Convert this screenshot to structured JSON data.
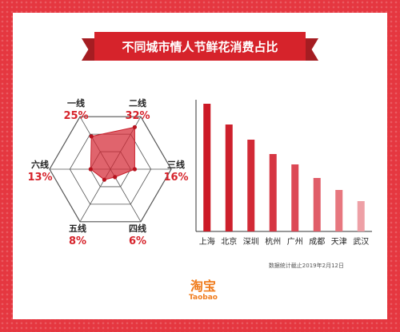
{
  "title": "不同城市情人节鲜花消费占比",
  "footnote": "数据统计截止2019年2月12日",
  "logo": {
    "cn": "淘宝",
    "en": "Taobao"
  },
  "colors": {
    "accent": "#d6232b",
    "frame": "#e53740",
    "logo": "#f07c1d"
  },
  "chart_data": [
    {
      "type": "radar",
      "categories": [
        "一线",
        "二线",
        "三线",
        "四线",
        "五线",
        "六线"
      ],
      "values": [
        25,
        32,
        16,
        6,
        8,
        13
      ],
      "value_labels": [
        "25%",
        "32%",
        "16%",
        "6%",
        "8%",
        "13%"
      ],
      "unit": "%"
    },
    {
      "type": "bar",
      "categories": [
        "上海",
        "北京",
        "深圳",
        "杭州",
        "广州",
        "成都",
        "天津",
        "武汉"
      ],
      "values": [
        160,
        134,
        115,
        97,
        84,
        67,
        52,
        38
      ],
      "ylim": [
        0,
        175
      ]
    }
  ]
}
